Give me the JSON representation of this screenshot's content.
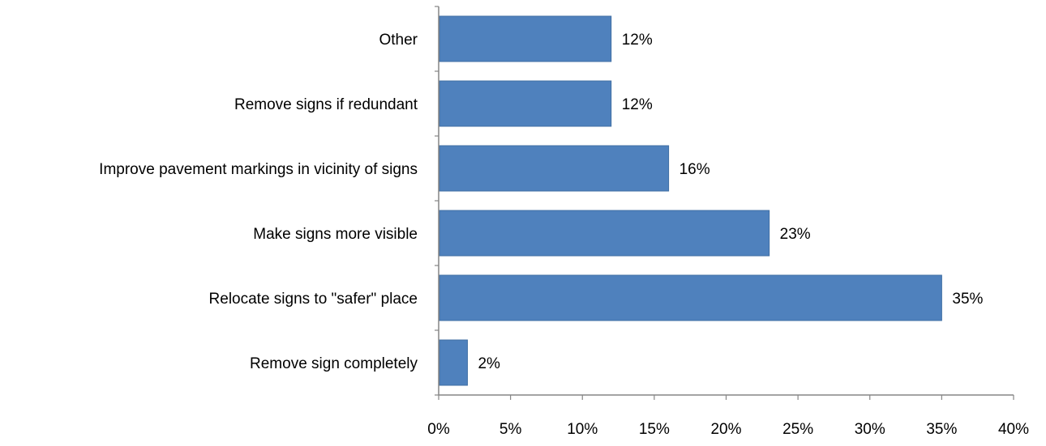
{
  "chart_data": {
    "type": "bar",
    "orientation": "horizontal",
    "categories": [
      "Other",
      "Remove signs if redundant",
      "Improve pavement markings in vicinity of signs",
      "Make signs more visible",
      "Relocate signs to \"safer\" place",
      "Remove sign completely"
    ],
    "values": [
      12,
      12,
      16,
      23,
      35,
      2
    ],
    "value_labels": [
      "12%",
      "12%",
      "16%",
      "23%",
      "35%",
      "2%"
    ],
    "xlim": [
      0,
      40
    ],
    "x_ticks": [
      0,
      5,
      10,
      15,
      20,
      25,
      30,
      35,
      40
    ],
    "x_tick_labels": [
      "0%",
      "5%",
      "10%",
      "15%",
      "20%",
      "25%",
      "30%",
      "35%",
      "40%"
    ],
    "bar_color": "#4f81bd",
    "grid": false,
    "legend": "none"
  }
}
